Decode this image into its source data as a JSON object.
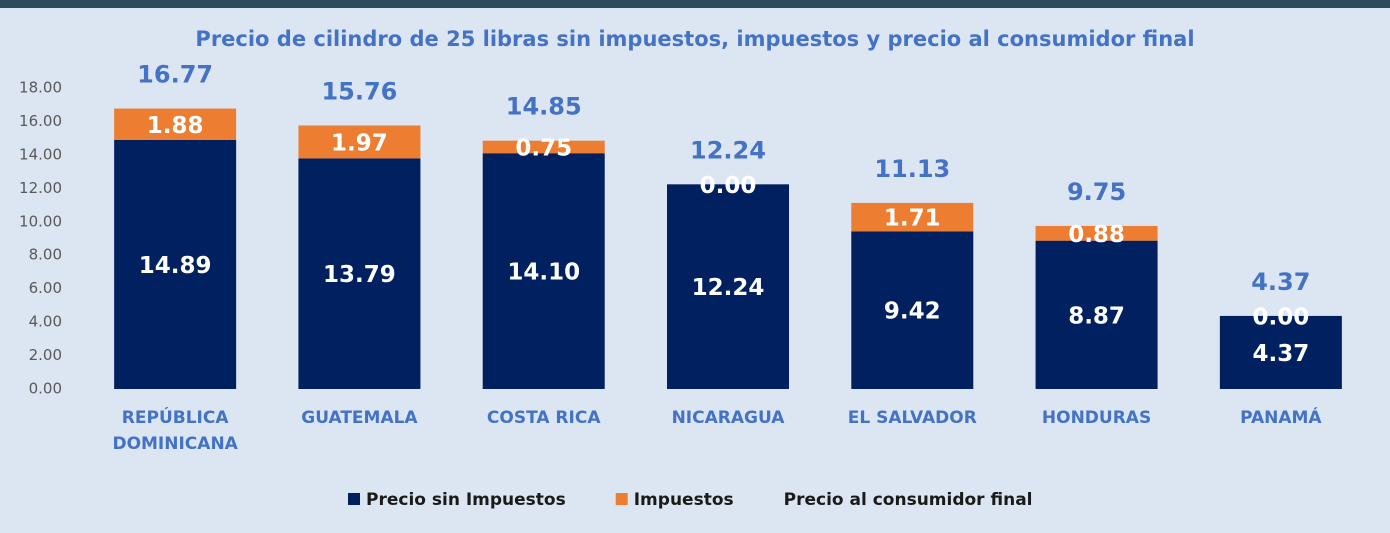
{
  "chart_data": {
    "type": "stacked_bar",
    "title": "Precio de cilindro de 25 libras sin impuestos, impuestos y precio al consumidor final",
    "categories": [
      "REPÚBLICA DOMINICANA",
      "GUATEMALA",
      "COSTA RICA",
      "NICARAGUA",
      "EL SALVADOR",
      "HONDURAS",
      "PANAMÁ"
    ],
    "series": [
      {
        "name": "Precio sin Impuestos",
        "color": "#002060",
        "values": [
          14.89,
          13.79,
          14.1,
          12.24,
          9.42,
          8.87,
          4.37
        ],
        "value_labels": [
          "14.89",
          "13.79",
          "14.10",
          "12.24",
          "9.42",
          "8.87",
          "4.37"
        ]
      },
      {
        "name": "Impuestos",
        "color": "#ed7d31",
        "values": [
          1.88,
          1.97,
          0.75,
          0,
          1.71,
          0.88,
          0
        ],
        "value_labels": [
          "1.88",
          "1.97",
          "0.75",
          "0.00",
          "1.71",
          "0.88",
          "0.00"
        ]
      },
      {
        "name": "Precio al consumidor final",
        "type": "label",
        "color": "#4472c4",
        "values": [
          16.77,
          15.76,
          14.85,
          12.24,
          11.13,
          9.75,
          4.37
        ],
        "value_labels": [
          "16.77",
          "15.76",
          "14.85",
          "12.24",
          "11.13",
          "9.75",
          "4.37"
        ]
      }
    ],
    "ylim": [
      0,
      18
    ],
    "yticks": [
      {
        "value": 0,
        "label": "0.00"
      },
      {
        "value": 2,
        "label": "2.00"
      },
      {
        "value": 4,
        "label": "4.00"
      },
      {
        "value": 6,
        "label": "6.00"
      },
      {
        "value": 8,
        "label": "8.00"
      },
      {
        "value": 10,
        "label": "10.00"
      },
      {
        "value": 12,
        "label": "12.00"
      },
      {
        "value": 14,
        "label": "14.00"
      },
      {
        "value": 16,
        "label": "16.00"
      },
      {
        "value": 18,
        "label": "18.00"
      }
    ],
    "legend": "bottom"
  }
}
